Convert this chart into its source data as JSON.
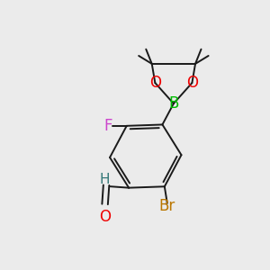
{
  "background_color": "#ebebeb",
  "bond_color": "#1a1a1a",
  "atom_colors": {
    "B": "#00bb00",
    "O": "#ee0000",
    "F": "#cc44cc",
    "Br": "#bb7700",
    "H": "#337777",
    "O_ald": "#ee0000"
  },
  "font_size_atoms": 11,
  "figsize": [
    3.0,
    3.0
  ],
  "dpi": 100,
  "xlim": [
    0,
    10
  ],
  "ylim": [
    0,
    10
  ]
}
